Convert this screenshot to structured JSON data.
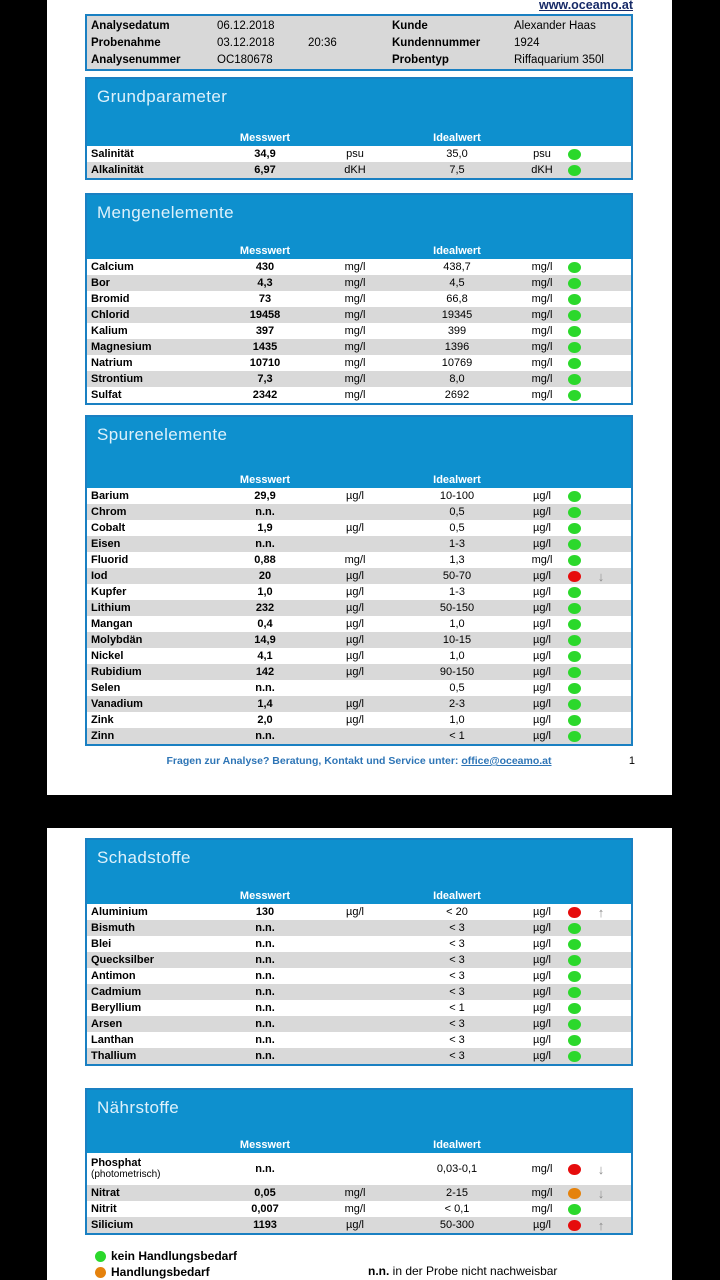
{
  "site": {
    "url": "www.oceamo.at"
  },
  "info_header": {
    "rows": [
      {
        "label": "Analysedatum",
        "value": "06.12.2018",
        "extra": "",
        "label2": "Kunde",
        "value2": "Alexander Haas"
      },
      {
        "label": "Probenahme",
        "value": "03.12.2018",
        "extra": "20:36",
        "label2": "Kundennummer",
        "value2": "1924"
      },
      {
        "label": "Analysenummer",
        "value": "OC180678",
        "extra": "",
        "label2": "Probentyp",
        "value2": "Riffaquarium 350l"
      }
    ]
  },
  "columns": {
    "messwert": "Messwert",
    "idealwert": "Idealwert"
  },
  "sections": [
    {
      "title": "Grundparameter",
      "page": 1,
      "rows": [
        {
          "name": "Salinität",
          "messwert": "34,9",
          "unit_m": "psu",
          "idealwert": "35,0",
          "unit_i": "psu",
          "status": "green",
          "arrow": ""
        },
        {
          "name": "Alkalinität",
          "messwert": "6,97",
          "unit_m": "dKH",
          "idealwert": "7,5",
          "unit_i": "dKH",
          "status": "green",
          "arrow": ""
        }
      ]
    },
    {
      "title": "Mengenelemente",
      "page": 1,
      "rows": [
        {
          "name": "Calcium",
          "messwert": "430",
          "unit_m": "mg/l",
          "idealwert": "438,7",
          "unit_i": "mg/l",
          "status": "green",
          "arrow": ""
        },
        {
          "name": "Bor",
          "messwert": "4,3",
          "unit_m": "mg/l",
          "idealwert": "4,5",
          "unit_i": "mg/l",
          "status": "green",
          "arrow": ""
        },
        {
          "name": "Bromid",
          "messwert": "73",
          "unit_m": "mg/l",
          "idealwert": "66,8",
          "unit_i": "mg/l",
          "status": "green",
          "arrow": ""
        },
        {
          "name": "Chlorid",
          "messwert": "19458",
          "unit_m": "mg/l",
          "idealwert": "19345",
          "unit_i": "mg/l",
          "status": "green",
          "arrow": ""
        },
        {
          "name": "Kalium",
          "messwert": "397",
          "unit_m": "mg/l",
          "idealwert": "399",
          "unit_i": "mg/l",
          "status": "green",
          "arrow": ""
        },
        {
          "name": "Magnesium",
          "messwert": "1435",
          "unit_m": "mg/l",
          "idealwert": "1396",
          "unit_i": "mg/l",
          "status": "green",
          "arrow": ""
        },
        {
          "name": "Natrium",
          "messwert": "10710",
          "unit_m": "mg/l",
          "idealwert": "10769",
          "unit_i": "mg/l",
          "status": "green",
          "arrow": ""
        },
        {
          "name": "Strontium",
          "messwert": "7,3",
          "unit_m": "mg/l",
          "idealwert": "8,0",
          "unit_i": "mg/l",
          "status": "green",
          "arrow": ""
        },
        {
          "name": "Sulfat",
          "messwert": "2342",
          "unit_m": "mg/l",
          "idealwert": "2692",
          "unit_i": "mg/l",
          "status": "green",
          "arrow": ""
        }
      ]
    },
    {
      "title": "Spurenelemente",
      "page": 1,
      "rows": [
        {
          "name": "Barium",
          "messwert": "29,9",
          "unit_m": "µg/l",
          "idealwert": "10-100",
          "unit_i": "µg/l",
          "status": "green",
          "arrow": ""
        },
        {
          "name": "Chrom",
          "messwert": "n.n.",
          "unit_m": "",
          "idealwert": "0,5",
          "unit_i": "µg/l",
          "status": "green",
          "arrow": ""
        },
        {
          "name": "Cobalt",
          "messwert": "1,9",
          "unit_m": "µg/l",
          "idealwert": "0,5",
          "unit_i": "µg/l",
          "status": "green",
          "arrow": ""
        },
        {
          "name": "Eisen",
          "messwert": "n.n.",
          "unit_m": "",
          "idealwert": "1-3",
          "unit_i": "µg/l",
          "status": "green",
          "arrow": ""
        },
        {
          "name": "Fluorid",
          "messwert": "0,88",
          "unit_m": "mg/l",
          "idealwert": "1,3",
          "unit_i": "mg/l",
          "status": "green",
          "arrow": ""
        },
        {
          "name": "Iod",
          "messwert": "20",
          "unit_m": "µg/l",
          "idealwert": "50-70",
          "unit_i": "µg/l",
          "status": "red",
          "arrow": "down"
        },
        {
          "name": "Kupfer",
          "messwert": "1,0",
          "unit_m": "µg/l",
          "idealwert": "1-3",
          "unit_i": "µg/l",
          "status": "green",
          "arrow": ""
        },
        {
          "name": "Lithium",
          "messwert": "232",
          "unit_m": "µg/l",
          "idealwert": "50-150",
          "unit_i": "µg/l",
          "status": "green",
          "arrow": ""
        },
        {
          "name": "Mangan",
          "messwert": "0,4",
          "unit_m": "µg/l",
          "idealwert": "1,0",
          "unit_i": "µg/l",
          "status": "green",
          "arrow": ""
        },
        {
          "name": "Molybdän",
          "messwert": "14,9",
          "unit_m": "µg/l",
          "idealwert": "10-15",
          "unit_i": "µg/l",
          "status": "green",
          "arrow": ""
        },
        {
          "name": "Nickel",
          "messwert": "4,1",
          "unit_m": "µg/l",
          "idealwert": "1,0",
          "unit_i": "µg/l",
          "status": "green",
          "arrow": ""
        },
        {
          "name": "Rubidium",
          "messwert": "142",
          "unit_m": "µg/l",
          "idealwert": "90-150",
          "unit_i": "µg/l",
          "status": "green",
          "arrow": ""
        },
        {
          "name": "Selen",
          "messwert": "n.n.",
          "unit_m": "",
          "idealwert": "0,5",
          "unit_i": "µg/l",
          "status": "green",
          "arrow": ""
        },
        {
          "name": "Vanadium",
          "messwert": "1,4",
          "unit_m": "µg/l",
          "idealwert": "2-3",
          "unit_i": "µg/l",
          "status": "green",
          "arrow": ""
        },
        {
          "name": "Zink",
          "messwert": "2,0",
          "unit_m": "µg/l",
          "idealwert": "1,0",
          "unit_i": "µg/l",
          "status": "green",
          "arrow": ""
        },
        {
          "name": "Zinn",
          "messwert": "n.n.",
          "unit_m": "",
          "idealwert": "< 1",
          "unit_i": "µg/l",
          "status": "green",
          "arrow": ""
        }
      ]
    },
    {
      "title": "Schadstoffe",
      "page": 2,
      "rows": [
        {
          "name": "Aluminium",
          "messwert": "130",
          "unit_m": "µg/l",
          "idealwert": "< 20",
          "unit_i": "µg/l",
          "status": "red",
          "arrow": "up"
        },
        {
          "name": "Bismuth",
          "messwert": "n.n.",
          "unit_m": "",
          "idealwert": "< 3",
          "unit_i": "µg/l",
          "status": "green",
          "arrow": ""
        },
        {
          "name": "Blei",
          "messwert": "n.n.",
          "unit_m": "",
          "idealwert": "< 3",
          "unit_i": "µg/l",
          "status": "green",
          "arrow": ""
        },
        {
          "name": "Quecksilber",
          "messwert": "n.n.",
          "unit_m": "",
          "idealwert": "< 3",
          "unit_i": "µg/l",
          "status": "green",
          "arrow": ""
        },
        {
          "name": "Antimon",
          "messwert": "n.n.",
          "unit_m": "",
          "idealwert": "< 3",
          "unit_i": "µg/l",
          "status": "green",
          "arrow": ""
        },
        {
          "name": "Cadmium",
          "messwert": "n.n.",
          "unit_m": "",
          "idealwert": "< 3",
          "unit_i": "µg/l",
          "status": "green",
          "arrow": ""
        },
        {
          "name": "Beryllium",
          "messwert": "n.n.",
          "unit_m": "",
          "idealwert": "< 1",
          "unit_i": "µg/l",
          "status": "green",
          "arrow": ""
        },
        {
          "name": "Arsen",
          "messwert": "n.n.",
          "unit_m": "",
          "idealwert": "< 3",
          "unit_i": "µg/l",
          "status": "green",
          "arrow": ""
        },
        {
          "name": "Lanthan",
          "messwert": "n.n.",
          "unit_m": "",
          "idealwert": "< 3",
          "unit_i": "µg/l",
          "status": "green",
          "arrow": ""
        },
        {
          "name": "Thallium",
          "messwert": "n.n.",
          "unit_m": "",
          "idealwert": "< 3",
          "unit_i": "µg/l",
          "status": "green",
          "arrow": ""
        }
      ]
    },
    {
      "title": "Nährstoffe",
      "page": 2,
      "rows": [
        {
          "name": "Phosphat",
          "sub": "(photometrisch)",
          "tall": true,
          "messwert": "n.n.",
          "unit_m": "",
          "idealwert": "0,03-0,1",
          "unit_i": "mg/l",
          "status": "red",
          "arrow": "down"
        },
        {
          "name": "Nitrat",
          "messwert": "0,05",
          "unit_m": "mg/l",
          "idealwert": "2-15",
          "unit_i": "mg/l",
          "status": "orange",
          "arrow": "down"
        },
        {
          "name": "Nitrit",
          "messwert": "0,007",
          "unit_m": "mg/l",
          "idealwert": "< 0,1",
          "unit_i": "mg/l",
          "status": "green",
          "arrow": ""
        },
        {
          "name": "Silicium",
          "messwert": "1193",
          "unit_m": "µg/l",
          "idealwert": "50-300",
          "unit_i": "µg/l",
          "status": "red",
          "arrow": "up"
        }
      ]
    }
  ],
  "footer": {
    "text": "Fragen zur Analyse? Beratung, Kontakt und Service unter: ",
    "link": "office@oceamo.at",
    "page_number": "1"
  },
  "legend": {
    "green_label": "kein Handlungsbedarf",
    "orange_label": "Handlungsbedarf",
    "nn_abbr": "n.n.",
    "nn_text": " in der Probe nicht nachweisbar"
  },
  "icons": {
    "down_arrow": "down-arrow-icon",
    "up_arrow": "up-arrow-icon",
    "status_dot": "status-dot"
  },
  "colors": {
    "green": "#2bd82b",
    "orange": "#e5820c",
    "red": "#e60c0c",
    "section_blue": "#0e90ce",
    "border_blue": "#1a80c2",
    "row_grey": "#d9d9d9",
    "footer_blue": "#2e75b6",
    "navy": "#172a67",
    "arrow_grey": "#8c8c8c"
  }
}
